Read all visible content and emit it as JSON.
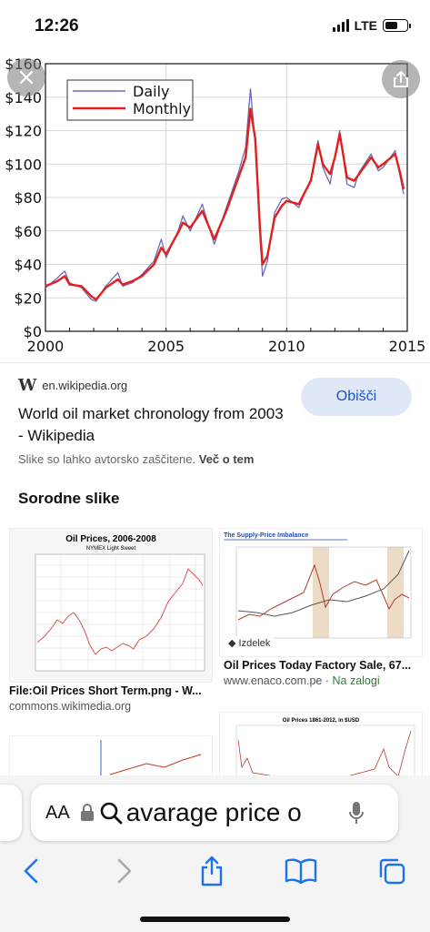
{
  "status": {
    "time": "12:26",
    "network": "LTE"
  },
  "chart": {
    "legend": [
      "Daily",
      "Monthly"
    ],
    "y_ticks": [
      "$0",
      "$20",
      "$40",
      "$60",
      "$80",
      "$100",
      "$120",
      "$140",
      "$160"
    ],
    "x_ticks": [
      "2000",
      "2005",
      "2010",
      "2015"
    ],
    "colors": {
      "daily": "#6b6bb5",
      "monthly": "#e02020"
    }
  },
  "chart_data": {
    "type": "line",
    "xlim": [
      2000,
      2015
    ],
    "ylim": [
      0,
      160
    ],
    "series": [
      {
        "name": "Monthly",
        "x": [
          2000.0,
          2000.5,
          2000.8,
          2001.0,
          2001.5,
          2001.9,
          2002.1,
          2002.5,
          2003.0,
          2003.2,
          2003.6,
          2004.0,
          2004.5,
          2004.8,
          2005.0,
          2005.5,
          2005.7,
          2006.0,
          2006.5,
          2007.0,
          2007.5,
          2008.0,
          2008.3,
          2008.5,
          2008.7,
          2008.9,
          2009.0,
          2009.2,
          2009.5,
          2009.8,
          2010.0,
          2010.5,
          2011.0,
          2011.3,
          2011.5,
          2011.8,
          2012.0,
          2012.2,
          2012.5,
          2012.8,
          2013.0,
          2013.5,
          2013.8,
          2014.0,
          2014.5,
          2014.7,
          2014.85
        ],
        "y": [
          27,
          30,
          33,
          28,
          27,
          21,
          19,
          26,
          31,
          28,
          30,
          33,
          40,
          50,
          46,
          59,
          65,
          62,
          72,
          55,
          72,
          92,
          104,
          133,
          115,
          60,
          40,
          45,
          68,
          75,
          78,
          76,
          90,
          112,
          100,
          94,
          104,
          118,
          92,
          90,
          94,
          104,
          98,
          100,
          106,
          95,
          85
        ]
      },
      {
        "name": "Daily",
        "x": [
          2000.0,
          2000.5,
          2000.8,
          2001.0,
          2001.5,
          2001.9,
          2002.1,
          2002.5,
          2003.0,
          2003.2,
          2003.6,
          2004.0,
          2004.5,
          2004.8,
          2005.0,
          2005.5,
          2005.7,
          2006.0,
          2006.5,
          2007.0,
          2007.5,
          2008.0,
          2008.3,
          2008.5,
          2008.7,
          2008.9,
          2009.0,
          2009.2,
          2009.5,
          2009.8,
          2010.0,
          2010.5,
          2011.0,
          2011.3,
          2011.5,
          2011.8,
          2012.0,
          2012.2,
          2012.5,
          2012.8,
          2013.0,
          2013.5,
          2013.8,
          2014.0,
          2014.5,
          2014.7,
          2014.85
        ],
        "y": [
          26,
          32,
          36,
          29,
          26,
          19,
          18,
          27,
          35,
          27,
          29,
          34,
          42,
          55,
          44,
          60,
          69,
          60,
          76,
          52,
          74,
          95,
          110,
          145,
          112,
          55,
          33,
          42,
          71,
          79,
          80,
          74,
          91,
          114,
          98,
          88,
          105,
          120,
          88,
          86,
          95,
          106,
          96,
          98,
          108,
          93,
          82
        ]
      }
    ]
  },
  "actions": {
    "close_icon": "close-icon",
    "share_icon": "share-icon"
  },
  "source": {
    "w": "W",
    "domain": "en.wikipedia.org",
    "visit_label": "Obišči"
  },
  "result": {
    "title": "World oil market chronology from 2003 - Wikipedia",
    "copyright_text": "Slike so lahko avtorsko zaščitene.",
    "copyright_link": "Več o tem"
  },
  "related": {
    "heading": "Sorodne slike",
    "items": [
      {
        "title": "File:Oil Prices Short Term.png - W...",
        "source": "commons.wikimedia.org",
        "extra": ""
      },
      {
        "title": "Oil Prices Today Factory Sale, 67...",
        "source": "www.enaco.com.pe",
        "extra": "Na zalogi",
        "badge": "Izdelek"
      }
    ],
    "thumb1": {
      "title": "Oil Prices, 2006-2008",
      "subtitle": "NYMEX Light Sweet"
    },
    "thumb2": {
      "title": "The Supply-Price Imbalance"
    },
    "thumb4": {
      "title": "Oil Prices 1861-2012, in $USD"
    }
  },
  "address_bar": {
    "aa": "AA",
    "query": "avarage price o"
  }
}
